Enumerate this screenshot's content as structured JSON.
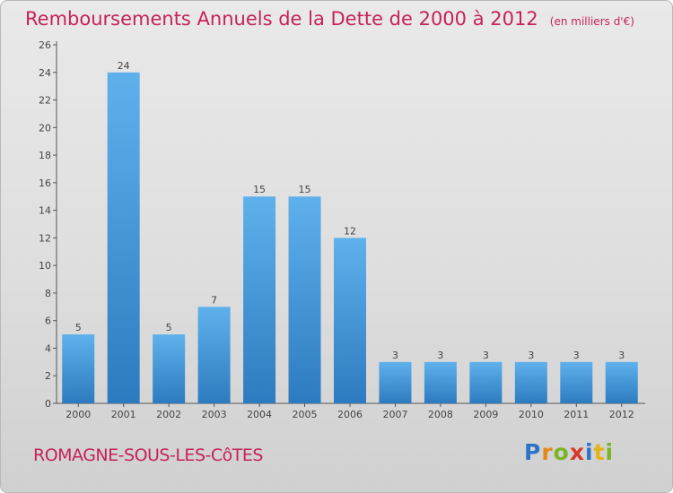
{
  "chart_data": {
    "type": "bar",
    "title": "Remboursements Annuels de la Dette de 2000 à 2012",
    "subtitle": "(en milliers d'€)",
    "categories": [
      "2000",
      "2001",
      "2002",
      "2003",
      "2004",
      "2005",
      "2006",
      "2007",
      "2008",
      "2009",
      "2010",
      "2011",
      "2012"
    ],
    "values": [
      5,
      24,
      5,
      7,
      15,
      15,
      12,
      3,
      3,
      3,
      3,
      3,
      3
    ],
    "ylim": [
      0,
      26
    ],
    "yticks": [
      0,
      2,
      4,
      6,
      8,
      10,
      12,
      14,
      16,
      18,
      20,
      22,
      24,
      26
    ],
    "grid": false,
    "bar_color": "#3f95d8"
  },
  "footer": {
    "city": "ROMAGNE-SOUS-LES-CôTES",
    "logo": "Proxiti"
  },
  "colors": {
    "accent": "#c5225a"
  }
}
